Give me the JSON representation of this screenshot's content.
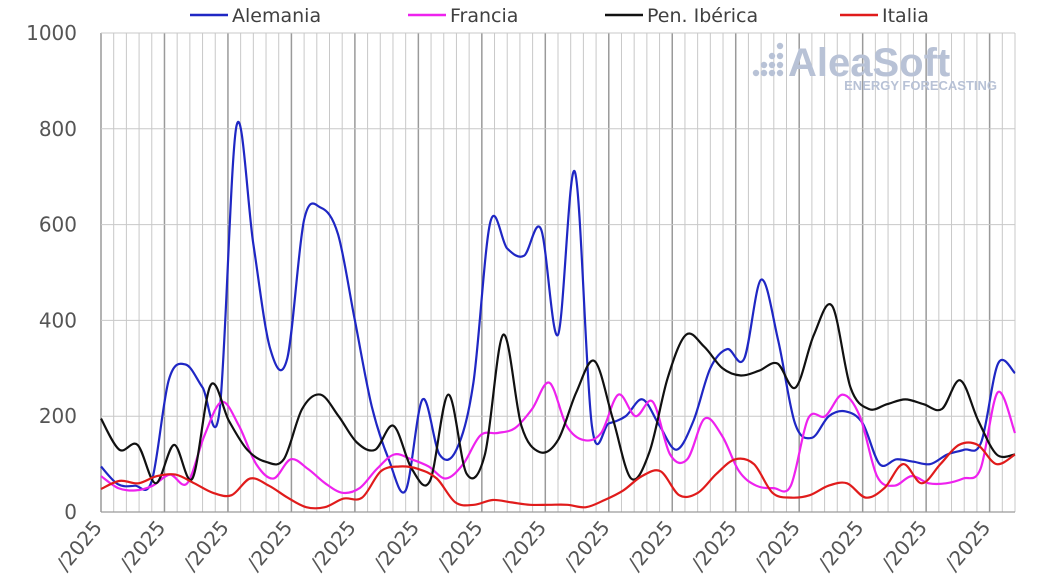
{
  "colors": {
    "alemania": "#1f27c4",
    "francia": "#ee22ee",
    "iberica": "#111111",
    "italia": "#e01b1b",
    "grid": "#c8c8c8",
    "grid_major": "#9a9a9a"
  },
  "logo": {
    "name": "AleaSoft",
    "tagline": "ENERGY FORECASTING"
  },
  "chart_data": {
    "type": "line",
    "title": "",
    "xlabel": "",
    "ylabel": "",
    "ylim": [
      0,
      1000
    ],
    "yticks": [
      0,
      200,
      400,
      600,
      800,
      1000
    ],
    "ytick_labels": [
      "0",
      "200",
      "400",
      "600",
      "800",
      "1000"
    ],
    "xtick_labels": [
      "/2025",
      "/2025",
      "/2025",
      "/2025",
      "/2025",
      "/2025",
      "/2025",
      "/2025",
      "/2025",
      "/2025",
      "/2025",
      "/2025",
      "/2025",
      "/2025",
      "/2025"
    ],
    "grid": true,
    "legend_position": "top",
    "x_count": 73,
    "series": [
      {
        "name": "Alemania",
        "color": "#1f27c4",
        "values": [
          95,
          58,
          55,
          65,
          275,
          308,
          260,
          210,
          805,
          560,
          340,
          320,
          610,
          635,
          580,
          400,
          220,
          110,
          45,
          235,
          120,
          130,
          270,
          605,
          550,
          535,
          590,
          370,
          710,
          180,
          185,
          200,
          235,
          180,
          130,
          190,
          300,
          340,
          320,
          485,
          360,
          185,
          155,
          200,
          210,
          185,
          100,
          110,
          105,
          100,
          120,
          130,
          145,
          310,
          290
        ]
      },
      {
        "name": "Francia",
        "color": "#ee22ee",
        "values": [
          75,
          50,
          45,
          55,
          78,
          60,
          160,
          230,
          180,
          100,
          70,
          110,
          90,
          60,
          40,
          50,
          90,
          120,
          110,
          95,
          70,
          100,
          160,
          165,
          175,
          215,
          270,
          180,
          150,
          165,
          245,
          200,
          230,
          120,
          110,
          195,
          160,
          85,
          55,
          50,
          55,
          195,
          200,
          245,
          200,
          75,
          55,
          75,
          60,
          60,
          70,
          90,
          250,
          165
        ]
      },
      {
        "name": "Pen. Ibérica",
        "color": "#111111",
        "values": [
          195,
          130,
          140,
          60,
          140,
          70,
          265,
          190,
          130,
          105,
          110,
          215,
          245,
          200,
          145,
          130,
          180,
          90,
          65,
          245,
          80,
          120,
          370,
          180,
          125,
          150,
          250,
          315,
          195,
          70,
          125,
          280,
          370,
          345,
          300,
          285,
          295,
          310,
          260,
          370,
          430,
          260,
          215,
          225,
          235,
          225,
          215,
          275,
          190,
          120,
          120
        ]
      },
      {
        "name": "Italia",
        "color": "#e01b1b",
        "values": [
          48,
          65,
          60,
          75,
          78,
          60,
          40,
          35,
          70,
          55,
          30,
          10,
          10,
          28,
          30,
          85,
          95,
          90,
          70,
          20,
          15,
          25,
          20,
          15,
          15,
          15,
          10,
          25,
          45,
          75,
          85,
          35,
          40,
          80,
          110,
          100,
          40,
          30,
          35,
          55,
          60,
          30,
          50,
          100,
          60,
          100,
          140,
          140,
          100,
          120
        ]
      }
    ]
  }
}
